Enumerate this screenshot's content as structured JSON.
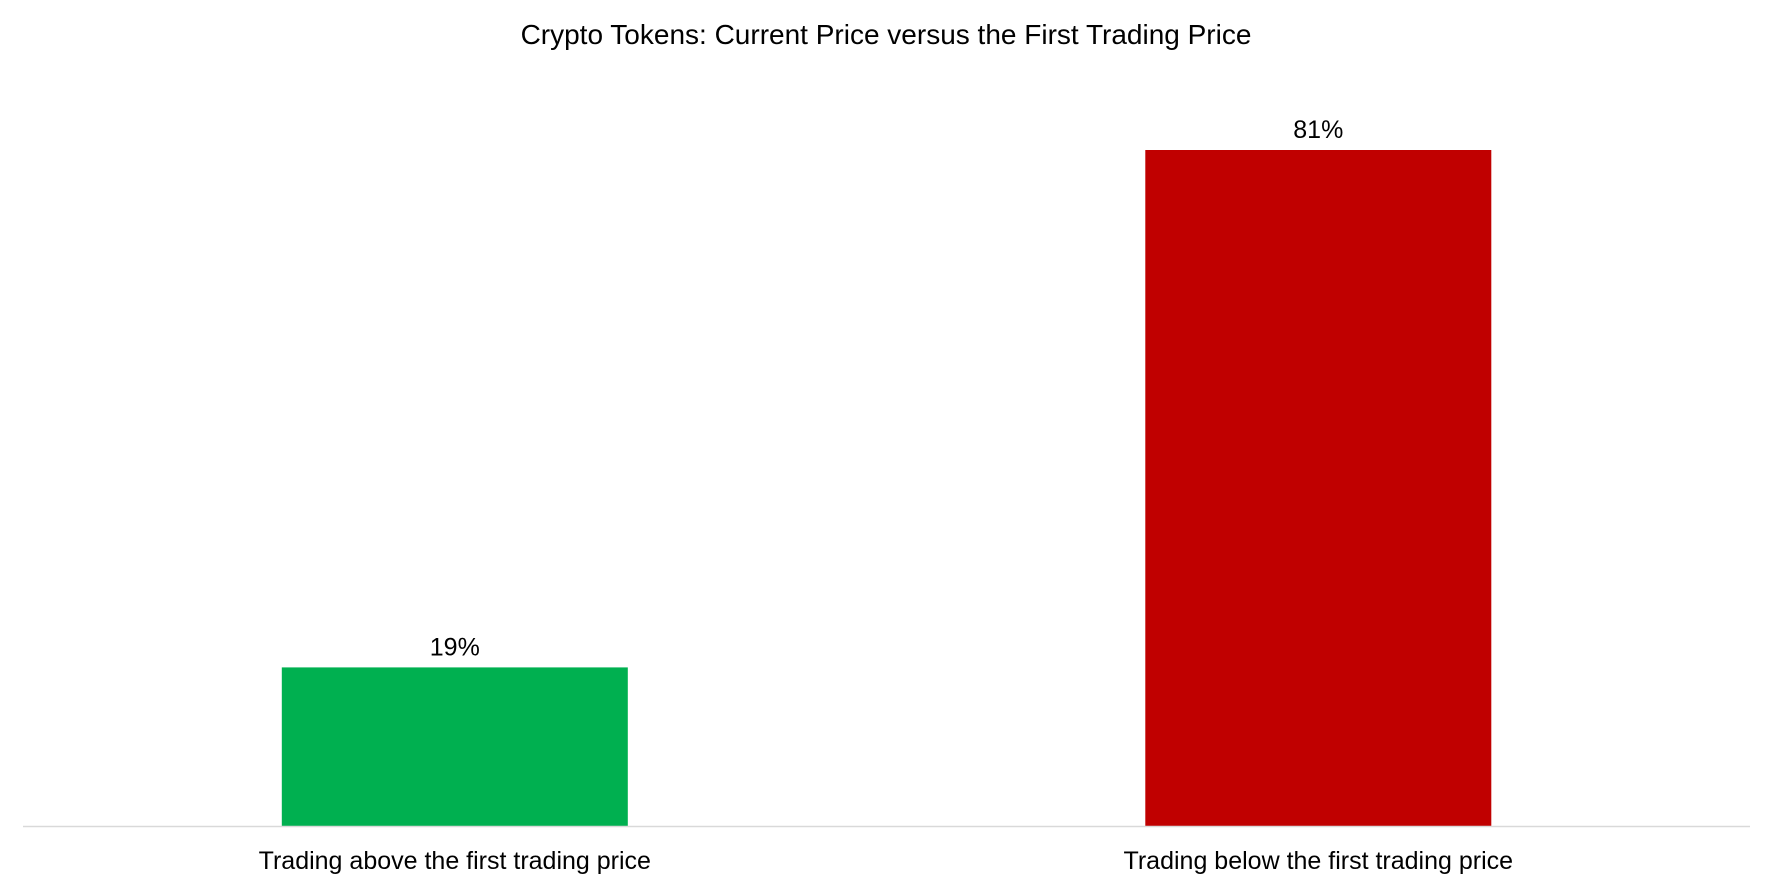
{
  "chart_data": {
    "type": "bar",
    "title": "Crypto Tokens: Current Price versus the First Trading Price",
    "xlabel": "",
    "ylabel": "",
    "categories": [
      "Trading above the first trading price",
      "Trading below the first trading price"
    ],
    "values": [
      19,
      81
    ],
    "value_labels": [
      "19%",
      "81%"
    ],
    "bar_colors": [
      "#00b050",
      "#c00000"
    ],
    "axis_color": "#d9d9d9",
    "ylim": [
      0,
      100
    ],
    "grid": false,
    "legend": "none"
  }
}
